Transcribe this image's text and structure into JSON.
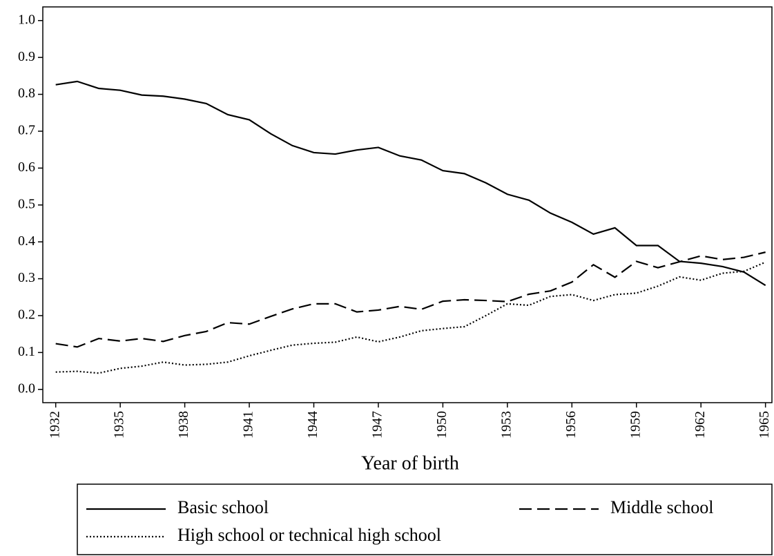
{
  "chart_data": {
    "type": "line",
    "x_label": "Year of birth",
    "x": [
      1932,
      1933,
      1934,
      1935,
      1936,
      1937,
      1938,
      1939,
      1940,
      1941,
      1942,
      1943,
      1944,
      1945,
      1946,
      1947,
      1948,
      1949,
      1950,
      1951,
      1952,
      1953,
      1954,
      1955,
      1956,
      1957,
      1958,
      1959,
      1960,
      1961,
      1962,
      1963,
      1964,
      1965
    ],
    "series": [
      {
        "name": "Basic school",
        "color": "#000000",
        "dash": "solid",
        "values": [
          0.826,
          0.835,
          0.816,
          0.811,
          0.798,
          0.795,
          0.787,
          0.775,
          0.745,
          0.731,
          0.693,
          0.661,
          0.642,
          0.638,
          0.649,
          0.656,
          0.633,
          0.622,
          0.593,
          0.585,
          0.56,
          0.529,
          0.513,
          0.478,
          0.453,
          0.421,
          0.438,
          0.39,
          0.39,
          0.347,
          0.342,
          0.333,
          0.318,
          0.282
        ]
      },
      {
        "name": "Middle school",
        "color": "#000000",
        "dash": "dashed",
        "values": [
          0.124,
          0.115,
          0.138,
          0.131,
          0.138,
          0.13,
          0.146,
          0.157,
          0.181,
          0.177,
          0.198,
          0.218,
          0.232,
          0.232,
          0.21,
          0.215,
          0.225,
          0.217,
          0.239,
          0.243,
          0.241,
          0.238,
          0.258,
          0.267,
          0.291,
          0.338,
          0.304,
          0.347,
          0.33,
          0.346,
          0.362,
          0.352,
          0.358,
          0.372
        ]
      },
      {
        "name": "High school or technical high school",
        "color": "#000000",
        "dash": "dotted",
        "values": [
          0.047,
          0.049,
          0.044,
          0.057,
          0.063,
          0.074,
          0.066,
          0.068,
          0.074,
          0.091,
          0.106,
          0.12,
          0.125,
          0.128,
          0.142,
          0.129,
          0.142,
          0.159,
          0.165,
          0.17,
          0.2,
          0.232,
          0.228,
          0.252,
          0.257,
          0.241,
          0.257,
          0.261,
          0.28,
          0.305,
          0.296,
          0.315,
          0.32,
          0.345
        ]
      }
    ],
    "xlim": [
      1931.4,
      1965.3
    ],
    "xticks": [
      1932,
      1935,
      1938,
      1941,
      1944,
      1947,
      1950,
      1953,
      1956,
      1959,
      1962,
      1965
    ],
    "ylim": [
      -0.036,
      1.037
    ],
    "yticks": [
      {
        "value": 0,
        "label": "0.0"
      },
      0.1,
      0.2,
      0.3,
      0.4,
      0.5,
      0.6,
      0.7,
      0.8,
      0.9,
      {
        "value": 1,
        "label": "1.0"
      }
    ],
    "grid": false,
    "legend": "bottom"
  }
}
